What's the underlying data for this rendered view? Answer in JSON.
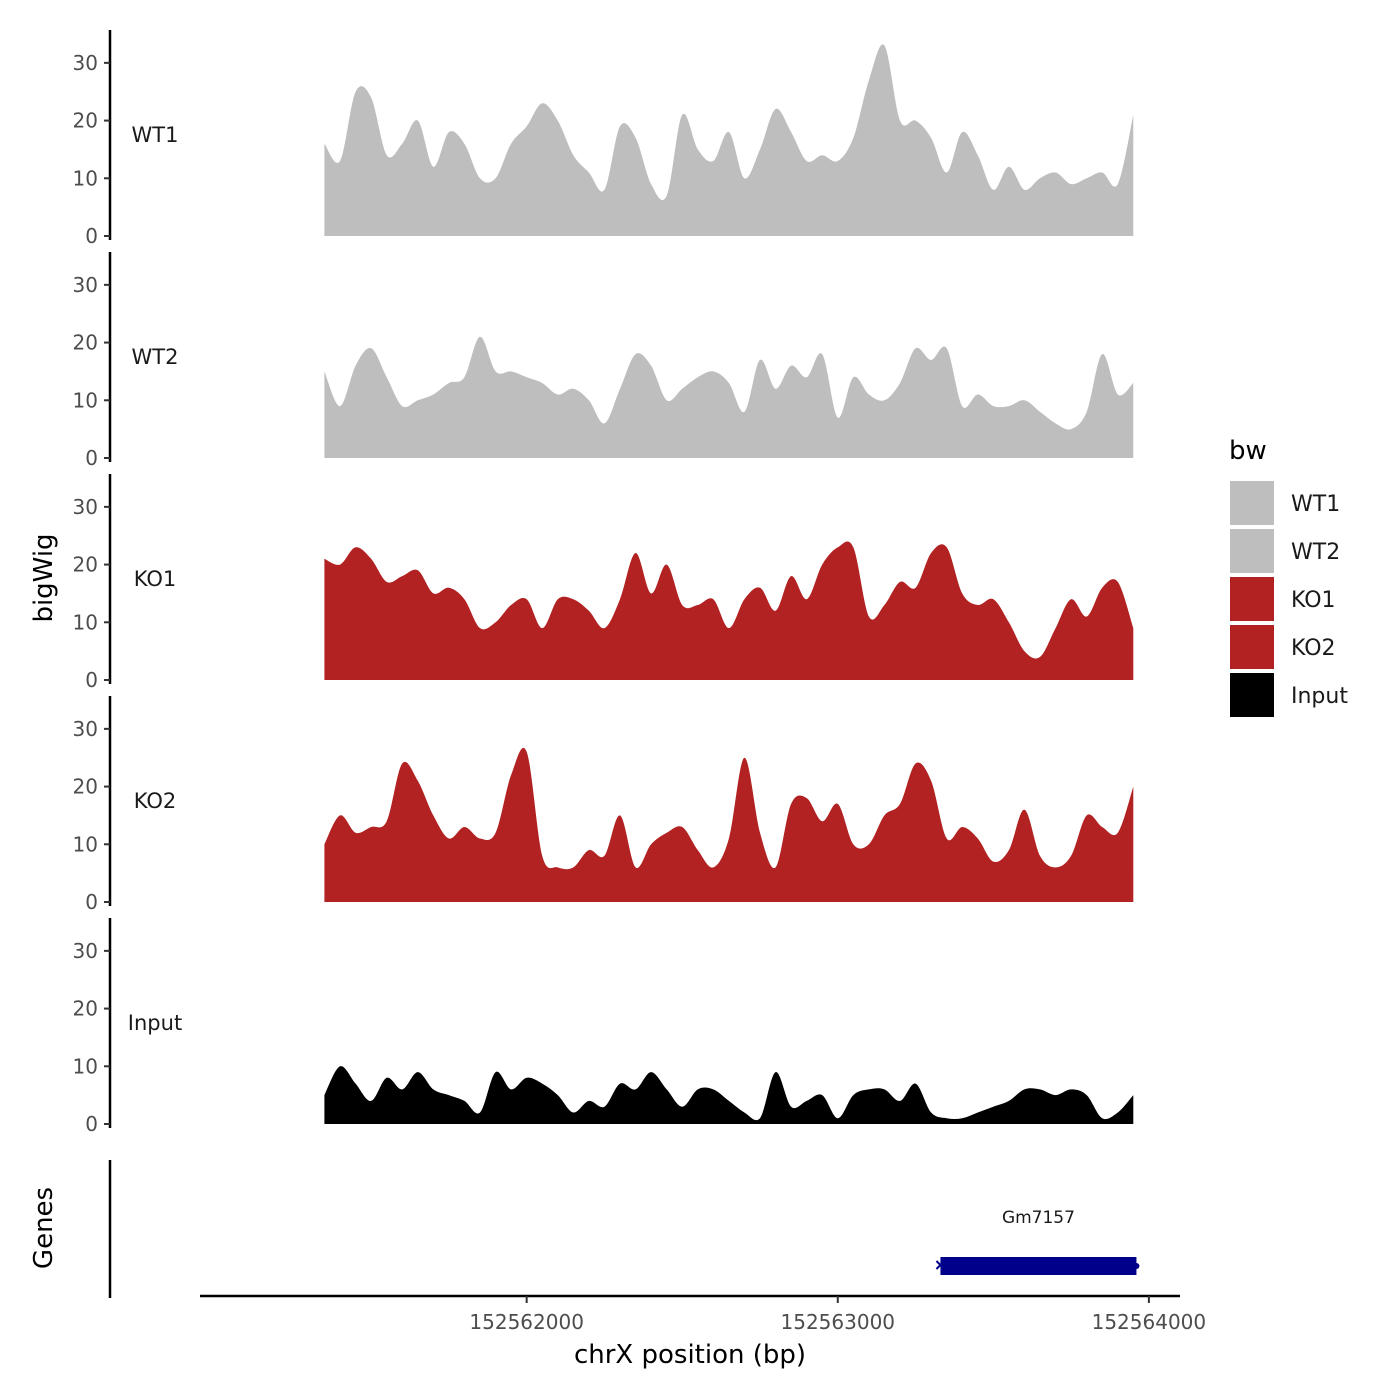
{
  "chart_data": {
    "type": "area",
    "x": [
      152561350,
      152561400,
      152561450,
      152561500,
      152561550,
      152561600,
      152561650,
      152561700,
      152561750,
      152561800,
      152561850,
      152561900,
      152561950,
      152562000,
      152562050,
      152562100,
      152562150,
      152562200,
      152562250,
      152562300,
      152562350,
      152562400,
      152562450,
      152562500,
      152562550,
      152562600,
      152562650,
      152562700,
      152562750,
      152562800,
      152562850,
      152562900,
      152562950,
      152563000,
      152563050,
      152563100,
      152563150,
      152563200,
      152563250,
      152563300,
      152563350,
      152563400,
      152563450,
      152563500,
      152563550,
      152563600,
      152563650,
      152563700,
      152563750,
      152563800,
      152563850,
      152563900,
      152563950
    ],
    "series": [
      {
        "name": "WT1",
        "color": "#bebebe",
        "values": [
          16,
          13,
          25,
          24,
          14,
          16,
          20,
          12,
          18,
          16,
          10,
          10,
          16,
          19,
          23,
          20,
          14,
          11,
          8,
          19,
          17,
          9,
          7,
          21,
          15,
          13,
          18,
          10,
          15,
          22,
          18,
          13,
          14,
          13,
          17,
          27,
          33,
          20,
          20,
          17,
          11,
          18,
          14,
          8,
          12,
          8,
          10,
          11,
          9,
          10,
          11,
          9,
          21
        ]
      },
      {
        "name": "WT2",
        "color": "#bebebe",
        "values": [
          15,
          9,
          16,
          19,
          14,
          9,
          10,
          11,
          13,
          14,
          21,
          15,
          15,
          14,
          13,
          11,
          12,
          10,
          6,
          12,
          18,
          16,
          10,
          12,
          14,
          15,
          13,
          8,
          17,
          12,
          16,
          14,
          18,
          7,
          14,
          11,
          10,
          13,
          19,
          17,
          19,
          9,
          11,
          9,
          9,
          10,
          8,
          6,
          5,
          8,
          18,
          11,
          13
        ]
      },
      {
        "name": "KO1",
        "color": "#b22222",
        "values": [
          21,
          20,
          23,
          21,
          17,
          18,
          19,
          15,
          16,
          14,
          9,
          10,
          13,
          14,
          9,
          14,
          14,
          12,
          9,
          14,
          22,
          15,
          20,
          13,
          13,
          14,
          9,
          14,
          16,
          12,
          18,
          14,
          20,
          23,
          23,
          11,
          13,
          17,
          16,
          22,
          23,
          15,
          13,
          14,
          10,
          5,
          4,
          9,
          14,
          11,
          16,
          17,
          9
        ]
      },
      {
        "name": "KO2",
        "color": "#b22222",
        "values": [
          10,
          15,
          12,
          13,
          14,
          24,
          21,
          15,
          11,
          13,
          11,
          12,
          22,
          26,
          8,
          6,
          6,
          9,
          8,
          15,
          6,
          10,
          12,
          13,
          9,
          6,
          11,
          25,
          12,
          6,
          17,
          18,
          14,
          17,
          10,
          10,
          15,
          17,
          24,
          21,
          11,
          13,
          11,
          7,
          9,
          16,
          8,
          6,
          8,
          15,
          13,
          12,
          20
        ]
      },
      {
        "name": "Input",
        "color": "#000000",
        "values": [
          5,
          10,
          7,
          4,
          8,
          6,
          9,
          6,
          5,
          4,
          2,
          9,
          6,
          8,
          7,
          5,
          2,
          4,
          3,
          7,
          6,
          9,
          6,
          3,
          6,
          6,
          4,
          2,
          1,
          9,
          3,
          4,
          5,
          1,
          5,
          6,
          6,
          4,
          7,
          2,
          1,
          1,
          2,
          3,
          4,
          6,
          6,
          5,
          6,
          5,
          1,
          2,
          5
        ]
      }
    ],
    "xlabel": "chrX position (bp)",
    "ylabel": "bigWig",
    "genes_label": "Genes",
    "ylim": [
      0,
      35
    ],
    "y_ticks": [
      0,
      10,
      20,
      30
    ],
    "y_tick_labels": [
      "0",
      "10",
      "20",
      "30"
    ],
    "x_ticks": [
      152562000,
      152563000,
      152564000
    ],
    "x_tick_labels": [
      "152562000",
      "152563000",
      "152564000"
    ],
    "xlim": [
      152560950,
      152564100
    ],
    "legend": {
      "title": "bw",
      "placement": "right",
      "entries": [
        {
          "label": "WT1",
          "color": "#bebebe"
        },
        {
          "label": "WT2",
          "color": "#bebebe"
        },
        {
          "label": "KO1",
          "color": "#b22222"
        },
        {
          "label": "KO2",
          "color": "#b22222"
        },
        {
          "label": "Input",
          "color": "#000000"
        }
      ]
    },
    "genes": [
      {
        "name": "Gm7157",
        "start": 152563330,
        "end": 152563960,
        "color": "#00008b"
      }
    ],
    "grid": false
  }
}
